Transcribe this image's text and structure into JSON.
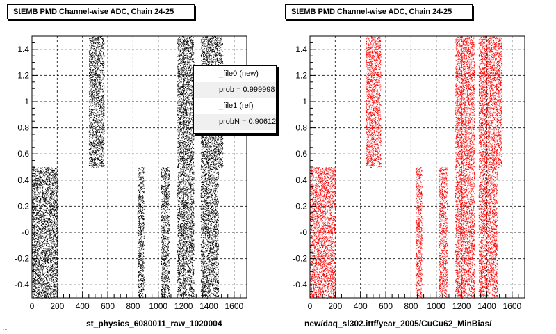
{
  "chart_data": [
    {
      "type": "scatter",
      "title": "StEMB PMD Channel-wise ADC, Chain 24-25",
      "xlabel": "st_physics_6080011_raw_1020004",
      "ylabel": "",
      "xlim": [
        0,
        1700
      ],
      "ylim": [
        -0.5,
        1.5
      ],
      "xticks": [
        "0",
        "200",
        "400",
        "600",
        "800",
        "1000",
        "1200",
        "1400",
        "1600"
      ],
      "yticks": [
        "-0.4",
        "-0.2",
        "-0",
        "0.2",
        "0.4",
        "0.6",
        "0.8",
        "1",
        "1.2",
        "1.4"
      ],
      "grid": true,
      "color": "#000000",
      "series": [
        {
          "bands": [
            {
              "x": [
                0,
                205
              ],
              "y": [
                -0.5,
                0.5
              ]
            },
            {
              "x": [
                450,
                570
              ],
              "y": [
                0.5,
                1.5
              ]
            },
            {
              "x": [
                835,
                885
              ],
              "y": [
                -0.5,
                0.5
              ]
            },
            {
              "x": [
                1020,
                1085
              ],
              "y": [
                -0.5,
                0.5
              ]
            },
            {
              "x": [
                1150,
                1280
              ],
              "y": [
                -0.5,
                1.5
              ]
            },
            {
              "x": [
                1335,
                1475
              ],
              "y": [
                -0.5,
                1.5
              ]
            },
            {
              "x": [
                1475,
                1510
              ],
              "y": [
                0.5,
                1.5
              ]
            }
          ]
        }
      ],
      "legend": {
        "placement": "top-right",
        "entries": [
          {
            "label": "_file0 (new)",
            "color": "#000000"
          },
          {
            "label": "prob = 0.999998",
            "color": "#000000"
          },
          {
            "label": "_file1 (ref)",
            "color": "#ff0000"
          },
          {
            "label": "probN = 0.906128",
            "color": "#ff0000"
          }
        ]
      }
    },
    {
      "type": "scatter",
      "title": "StEMB PMD Channel-wise ADC, Chain 24-25",
      "xlabel": "new/daq_sl302.ittf/year_2005/CuCu62_MinBias/",
      "ylabel": "",
      "xlim": [
        0,
        1700
      ],
      "ylim": [
        -0.5,
        1.5
      ],
      "xticks": [
        "0",
        "200",
        "400",
        "600",
        "800",
        "1000",
        "1200",
        "1400",
        "1600"
      ],
      "yticks": [
        "-0.4",
        "-0.2",
        "-0",
        "0.2",
        "0.4",
        "0.6",
        "0.8",
        "1",
        "1.2",
        "1.4"
      ],
      "grid": true,
      "color": "#ff0000",
      "series": [
        {
          "bands": [
            {
              "x": [
                0,
                200
              ],
              "y": [
                -0.5,
                0.5
              ]
            },
            {
              "x": [
                440,
                560
              ],
              "y": [
                0.5,
                1.5
              ]
            },
            {
              "x": [
                835,
                885
              ],
              "y": [
                -0.5,
                0.5
              ]
            },
            {
              "x": [
                1020,
                1085
              ],
              "y": [
                -0.5,
                0.5
              ]
            },
            {
              "x": [
                1150,
                1300
              ],
              "y": [
                -0.5,
                1.5
              ]
            },
            {
              "x": [
                1335,
                1480
              ],
              "y": [
                -0.5,
                1.5
              ]
            },
            {
              "x": [
                1480,
                1520
              ],
              "y": [
                0.5,
                1.5
              ]
            }
          ]
        }
      ]
    }
  ],
  "footer_text": "..."
}
